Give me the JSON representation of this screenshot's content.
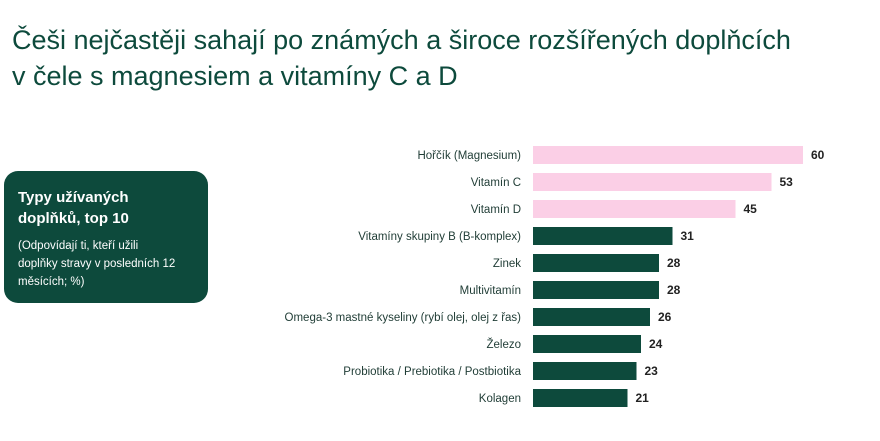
{
  "title": {
    "line1": "Češi nejčastěji sahají po známých a široce rozšířených doplňcích",
    "line2": "v čele s magnesiem a vitamíny C a D"
  },
  "info_box": {
    "heading_line1": "Typy užívaných",
    "heading_line2": "doplňků, top 10",
    "note_line1": "(Odpovídají ti, kteří užili",
    "note_line2": "doplňky stravy v posledních 12",
    "note_line3": "měsících; %)"
  },
  "colors": {
    "highlight": "#fbcfe6",
    "normal": "#0d4a3c"
  },
  "chart_data": {
    "type": "bar",
    "orientation": "horizontal",
    "categories": [
      "Hořčík (Magnesium)",
      "Vitamín C",
      "Vitamín D",
      "Vitamíny skupiny B (B-komplex)",
      "Zinek",
      "Multivitamín",
      "Omega-3 mastné kyseliny (rybí olej, olej z řas)",
      "Železo",
      "Probiotika / Prebiotika / Postbiotika",
      "Kolagen"
    ],
    "values": [
      60,
      53,
      45,
      31,
      28,
      28,
      26,
      24,
      23,
      21
    ],
    "highlighted": [
      true,
      true,
      true,
      false,
      false,
      false,
      false,
      false,
      false,
      false
    ],
    "xlim": [
      0,
      60
    ],
    "grid": false,
    "legend": "none"
  }
}
